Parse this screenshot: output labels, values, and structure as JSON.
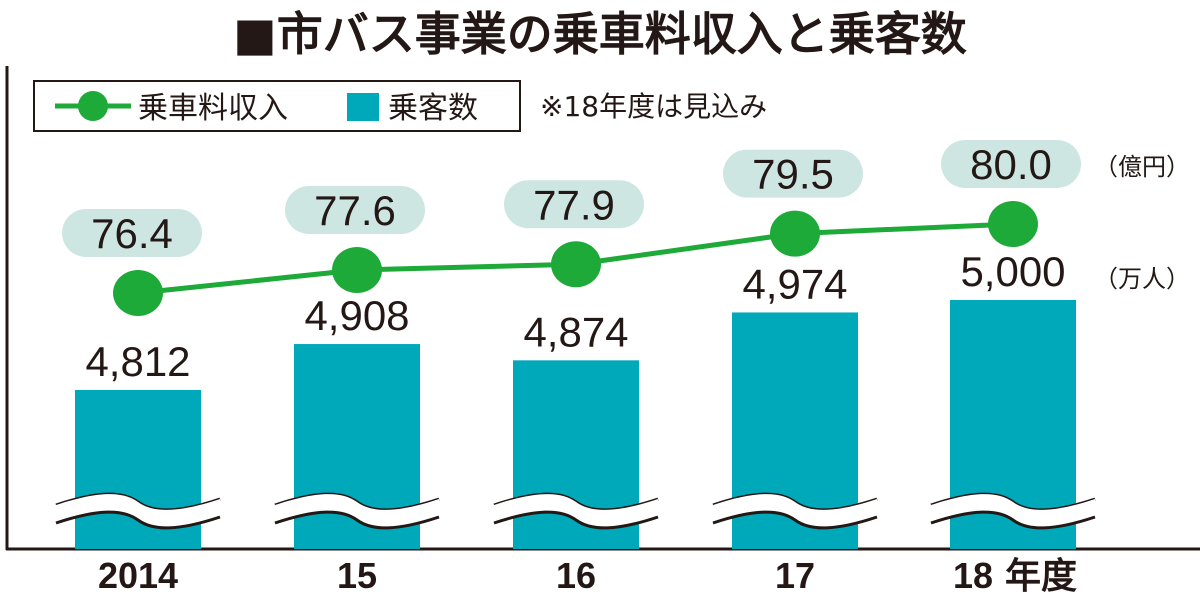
{
  "title": "■市バス事業の乗車料収入と乗客数",
  "legend": {
    "revenue_label": "乗車料収入",
    "passengers_label": "乗客数",
    "note": "※18年度は見込み"
  },
  "units": {
    "revenue": "（億円）",
    "passengers": "（万人）"
  },
  "colors": {
    "bar": "#00A9B9",
    "line": "#1EAA38",
    "label_bubble": "#CDE6E2",
    "text": "#231815"
  },
  "chart_data": {
    "type": "bar",
    "categories": [
      "2014",
      "15",
      "16",
      "17",
      "18"
    ],
    "category_suffix": "年度",
    "series": [
      {
        "name": "乗客数",
        "type": "bar",
        "values": [
          4812,
          4908,
          4874,
          4974,
          5000
        ],
        "labels": [
          "4,812",
          "4,908",
          "4,874",
          "4,974",
          "5,000"
        ],
        "unit": "万人"
      },
      {
        "name": "乗車料収入",
        "type": "line",
        "values": [
          76.4,
          77.6,
          77.9,
          79.5,
          80.0
        ],
        "labels": [
          "76.4",
          "77.6",
          "77.9",
          "79.5",
          "80.0"
        ],
        "unit": "億円"
      }
    ],
    "bar_axis_broken": true,
    "grid": false,
    "legend_position": "top-left",
    "title": "■市バス事業の乗車料収入と乗客数"
  }
}
